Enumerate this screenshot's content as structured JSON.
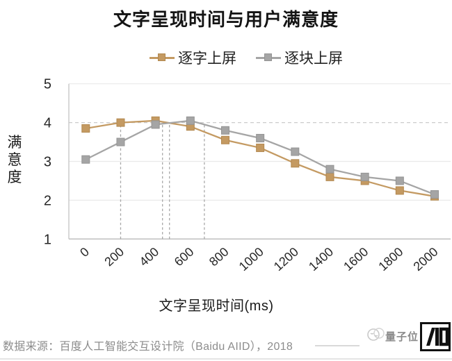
{
  "chart_data": {
    "type": "line",
    "title": "文字呈现时间与用户满意度",
    "xlabel": "文字呈现时间(ms)",
    "ylabel": "满意度",
    "categories": [
      0,
      200,
      400,
      600,
      800,
      1000,
      1200,
      1400,
      1600,
      1800,
      2000
    ],
    "series": [
      {
        "name": "逐字上屏",
        "color": "#c49a62",
        "marker_edge": "#b2884f",
        "values": [
          3.85,
          4.0,
          4.05,
          3.9,
          3.55,
          3.35,
          2.95,
          2.6,
          2.5,
          2.25,
          2.1
        ]
      },
      {
        "name": "逐块上屏",
        "color": "#a5a5a5",
        "marker_edge": "#949494",
        "values": [
          3.05,
          3.5,
          3.95,
          4.05,
          3.8,
          3.6,
          3.25,
          2.8,
          2.6,
          2.5,
          2.15
        ]
      }
    ],
    "ylim": [
      1,
      5
    ],
    "yticks": [
      1,
      2,
      3,
      4,
      5
    ],
    "grid": true,
    "legend_position": "top",
    "reference_lines": {
      "horizontal_y": 4,
      "vertical_x_ms": [
        200,
        440,
        480,
        680
      ]
    }
  },
  "colors": {
    "gridline": "#e9e9e9",
    "axis": "#c4c4c4",
    "dashed_h": "#cbcbcb",
    "dashed_v": "#a8a8a8",
    "tick_text": "#262626"
  },
  "footer": {
    "source": "数据来源：百度人工智能交互设计院（Baidu AIID），2018"
  },
  "watermark": {
    "brand": "量子位"
  }
}
